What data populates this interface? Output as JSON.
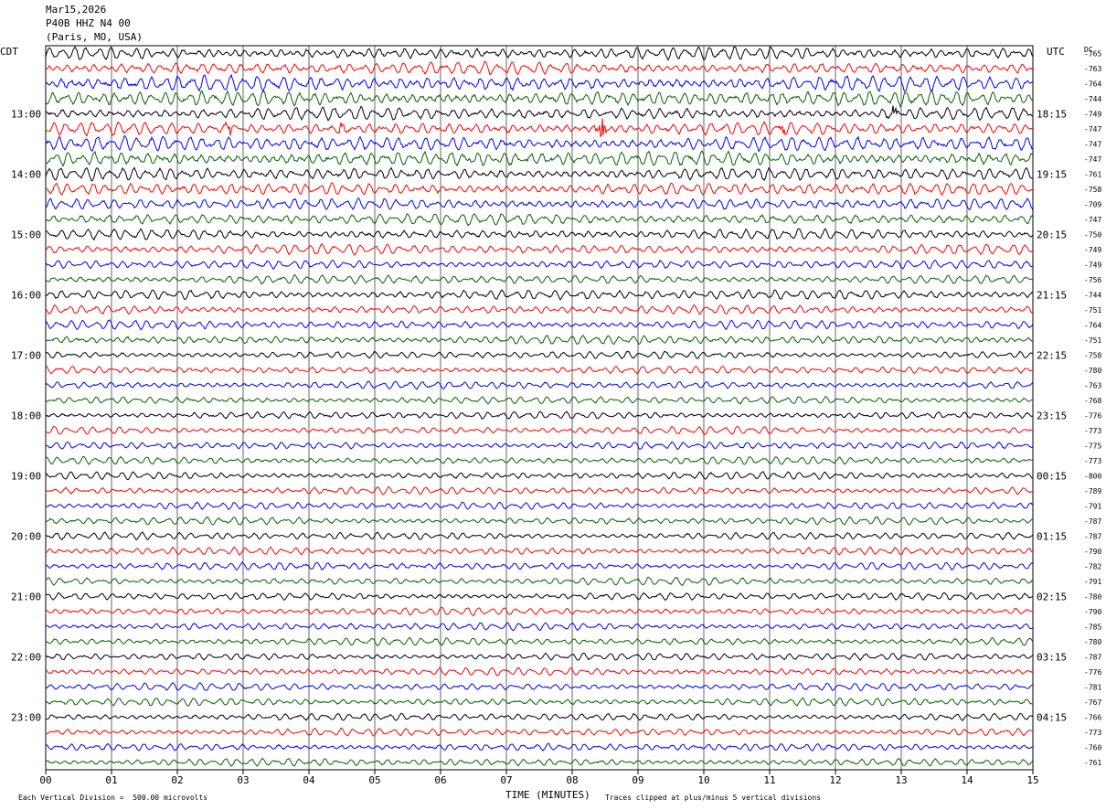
{
  "header": {
    "date": "Mar15,2026",
    "station": "P40B HHZ N4 00",
    "location": "(Paris, MO, USA)"
  },
  "left_tz": "CDT",
  "right_tz": "UTC",
  "dc_label": "DC",
  "footer": {
    "scale_note": "Each Vertical Division =  500.00 microvolts",
    "xlabel": "TIME (MINUTES)",
    "clip_note": "Traces clipped at plus/minus 5 vertical divisions"
  },
  "chart_data": {
    "type": "line",
    "title": "P40B HHZ N4 00",
    "xlabel": "TIME (MINUTES)",
    "xlim": [
      0,
      15
    ],
    "x_ticks": [
      "00",
      "01",
      "02",
      "03",
      "04",
      "05",
      "06",
      "07",
      "08",
      "09",
      "10",
      "11",
      "12",
      "13",
      "14",
      "15"
    ],
    "grid": true,
    "trace_colors": [
      "#000000",
      "#ff0000",
      "#0000ff",
      "#006400"
    ],
    "left_hour_labels": [
      "13:00",
      "14:00",
      "15:00",
      "16:00",
      "17:00",
      "18:00",
      "19:00",
      "20:00",
      "21:00",
      "22:00",
      "23:00"
    ],
    "right_hour_labels": [
      "18:15",
      "19:15",
      "20:15",
      "21:15",
      "22:15",
      "23:15",
      "00:15",
      "01:15",
      "02:15",
      "03:15",
      "04:15"
    ],
    "dc_offsets": [
      -765,
      -763,
      -764,
      -744,
      -749,
      -747,
      -747,
      -747,
      -761,
      -758,
      -709,
      -747,
      -750,
      -749,
      -749,
      -756,
      -744,
      -751,
      -764,
      -751,
      -758,
      -780,
      -763,
      -768,
      -776,
      -773,
      -775,
      -773,
      -800,
      -789,
      -791,
      -787,
      -787,
      -790,
      -782,
      -791,
      -780,
      -790,
      -785,
      -780,
      -787,
      -776,
      -781,
      -767,
      -766,
      -773,
      -760,
      -761
    ],
    "row_amplitudes": [
      5,
      5,
      6,
      6,
      5,
      5,
      6,
      6,
      5,
      5,
      4.5,
      4.5,
      4,
      4,
      3.5,
      3.5,
      4,
      3.5,
      3.5,
      3.5,
      3,
      3,
      3,
      3,
      3,
      3,
      3,
      3,
      3,
      3,
      3,
      3,
      3,
      3,
      3,
      3,
      3,
      3,
      3,
      3,
      3,
      3,
      3,
      3,
      3,
      3,
      3,
      3
    ],
    "spikes": [
      {
        "row": 5,
        "minute": 2.8,
        "amp": 7
      },
      {
        "row": 5,
        "minute": 4.5,
        "amp": 4
      },
      {
        "row": 5,
        "minute": 8.45,
        "amp": 12
      },
      {
        "row": 5,
        "minute": 11.2,
        "amp": 4
      },
      {
        "row": 4,
        "minute": 12.9,
        "amp": 6
      }
    ]
  }
}
